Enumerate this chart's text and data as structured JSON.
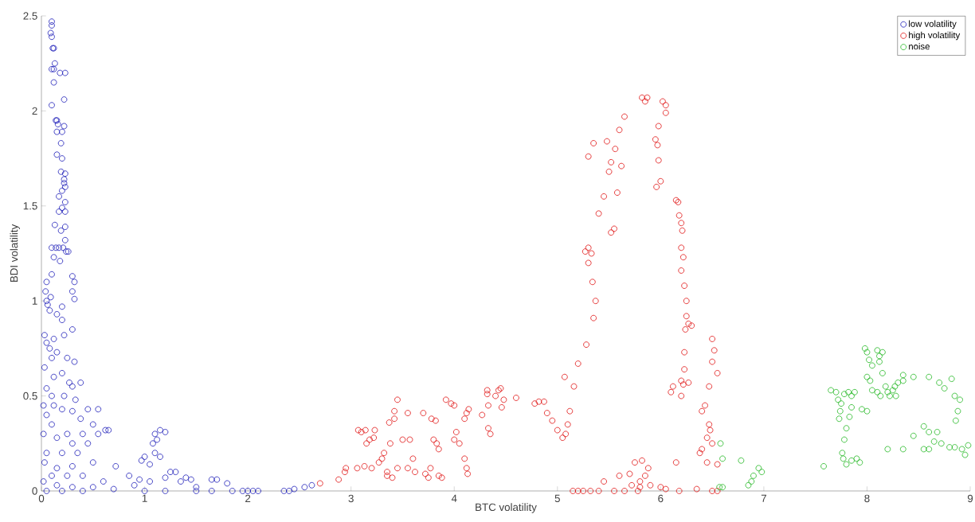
{
  "chart_data": {
    "type": "scatter",
    "xlabel": "BTC volatility",
    "ylabel": "BDI volatility",
    "xlim": [
      0,
      9
    ],
    "ylim": [
      0,
      2.5
    ],
    "xticks": [
      0,
      1,
      2,
      3,
      4,
      5,
      6,
      7,
      8,
      9
    ],
    "yticks": [
      0,
      0.5,
      1,
      1.5,
      2,
      2.5
    ],
    "legend": "top right",
    "marker": "circle",
    "series": [
      {
        "name": "low volatility",
        "color": "#1a1ab8",
        "x": [
          0.1,
          0.1,
          0.09,
          0.1,
          0.11,
          0.12,
          0.13,
          0.12,
          0.1,
          0.18,
          0.23,
          0.12,
          0.22,
          0.1,
          0.15,
          0.14,
          0.16,
          0.22,
          0.2,
          0.15,
          0.19,
          0.15,
          0.2,
          0.19,
          0.23,
          0.22,
          0.22,
          0.23,
          0.2,
          0.17,
          0.23,
          0.2,
          0.23,
          0.17,
          0.13,
          0.23,
          0.19,
          0.23,
          0.21,
          0.1,
          0.14,
          0.17,
          0.24,
          0.26,
          0.12,
          0.18,
          0.3,
          0.32,
          0.3,
          0.32,
          0.1,
          0.05,
          0.04,
          0.05,
          0.06,
          0.09,
          0.08,
          0.2,
          0.2,
          0.15,
          0.3,
          0.22,
          0.12,
          0.03,
          0.05,
          0.08,
          0.15,
          0.1,
          0.25,
          0.32,
          0.03,
          0.2,
          0.12,
          0.27,
          0.38,
          0.05,
          0.3,
          0.1,
          0.22,
          0.33,
          0.02,
          0.12,
          0.45,
          0.55,
          0.2,
          0.3,
          0.05,
          0.38,
          0.5,
          0.65,
          0.62,
          0.1,
          0.25,
          0.4,
          0.55,
          0.02,
          0.15,
          0.3,
          0.45,
          0.05,
          0.2,
          0.35,
          0.5,
          0.03,
          0.15,
          0.3,
          0.72,
          0.1,
          0.25,
          0.4,
          0.6,
          0.02,
          0.15,
          0.3,
          0.5,
          0.05,
          0.2,
          0.4,
          0.7,
          0.9,
          1.0,
          0.97,
          1.1,
          1.15,
          1.12,
          1.08,
          1.1,
          1.15,
          1.05,
          1.2,
          0.85,
          0.95,
          1.05,
          1.2,
          1.25,
          1.3,
          1.35,
          1.4,
          1.45,
          1.5,
          1.65,
          1.7,
          1.8,
          1.0,
          1.2,
          1.5,
          1.65,
          1.85,
          1.95,
          2.0,
          2.05,
          2.1,
          2.35,
          2.4,
          2.45,
          2.55,
          2.62
        ],
        "values": [
          2.47,
          2.45,
          2.41,
          2.39,
          2.33,
          2.33,
          2.25,
          2.22,
          2.22,
          2.2,
          2.2,
          2.15,
          2.06,
          2.03,
          1.95,
          1.95,
          1.93,
          1.92,
          1.89,
          1.89,
          1.83,
          1.77,
          1.75,
          1.68,
          1.67,
          1.64,
          1.62,
          1.6,
          1.58,
          1.55,
          1.52,
          1.49,
          1.47,
          1.47,
          1.4,
          1.39,
          1.37,
          1.32,
          1.28,
          1.28,
          1.28,
          1.28,
          1.26,
          1.26,
          1.23,
          1.21,
          1.13,
          1.1,
          1.05,
          1.01,
          1.14,
          1.1,
          1.05,
          1.0,
          0.98,
          1.02,
          0.95,
          0.97,
          0.9,
          0.93,
          0.85,
          0.82,
          0.8,
          0.82,
          0.78,
          0.75,
          0.73,
          0.7,
          0.7,
          0.68,
          0.65,
          0.62,
          0.6,
          0.57,
          0.57,
          0.54,
          0.55,
          0.5,
          0.5,
          0.48,
          0.45,
          0.45,
          0.43,
          0.43,
          0.43,
          0.42,
          0.4,
          0.38,
          0.35,
          0.32,
          0.32,
          0.35,
          0.3,
          0.3,
          0.3,
          0.3,
          0.28,
          0.25,
          0.25,
          0.2,
          0.2,
          0.2,
          0.15,
          0.15,
          0.12,
          0.13,
          0.13,
          0.08,
          0.08,
          0.08,
          0.05,
          0.05,
          0.03,
          0.02,
          0.02,
          0.0,
          0.0,
          0.0,
          0.01,
          0.03,
          0.18,
          0.16,
          0.3,
          0.32,
          0.27,
          0.25,
          0.2,
          0.18,
          0.14,
          0.31,
          0.08,
          0.06,
          0.05,
          0.07,
          0.1,
          0.1,
          0.05,
          0.07,
          0.06,
          0.02,
          0.06,
          0.06,
          0.04,
          0.0,
          0.0,
          0.0,
          0.0,
          0.0,
          0.0,
          0.0,
          0.0,
          0.0,
          0.0,
          0.0,
          0.01,
          0.02,
          0.03
        ]
      },
      {
        "name": "high volatility",
        "color": "#e01010",
        "x": [
          2.7,
          2.88,
          2.94,
          2.95,
          3.06,
          3.13,
          3.2,
          3.07,
          3.1,
          3.14,
          3.23,
          3.15,
          3.18,
          3.22,
          3.27,
          3.3,
          3.35,
          3.35,
          3.4,
          3.32,
          3.38,
          3.37,
          3.42,
          3.45,
          3.42,
          3.55,
          3.5,
          3.57,
          3.45,
          3.55,
          3.6,
          3.62,
          3.72,
          3.75,
          3.7,
          3.78,
          3.82,
          3.8,
          3.83,
          3.85,
          3.77,
          3.85,
          3.88,
          3.92,
          3.97,
          4.0,
          4.02,
          4.0,
          4.05,
          4.1,
          4.12,
          4.14,
          4.12,
          4.13,
          4.1,
          4.27,
          4.32,
          4.32,
          4.33,
          4.33,
          4.35,
          4.4,
          4.43,
          4.45,
          4.48,
          4.46,
          4.6,
          4.78,
          4.82,
          4.87,
          4.9,
          4.95,
          5.0,
          5.05,
          5.08,
          5.1,
          5.12,
          5.16,
          5.07,
          5.2,
          5.28,
          5.35,
          5.37,
          5.34,
          5.3,
          5.27,
          5.3,
          5.33,
          5.4,
          5.45,
          5.5,
          5.52,
          5.56,
          5.6,
          5.65,
          5.62,
          5.58,
          5.55,
          5.52,
          5.35,
          5.48,
          5.3,
          5.82,
          5.87,
          5.85,
          6.02,
          6.05,
          6.05,
          5.98,
          5.95,
          5.97,
          5.98,
          6.0,
          5.96,
          6.15,
          6.17,
          6.18,
          6.2,
          6.21,
          6.2,
          6.22,
          6.2,
          6.23,
          6.25,
          6.25,
          6.27,
          6.3,
          6.24,
          6.23,
          6.23,
          6.2,
          6.22,
          6.12,
          6.1,
          6.2,
          6.27,
          6.5,
          6.52,
          6.5,
          6.55,
          6.47,
          6.43,
          6.4,
          6.47,
          6.48,
          6.45,
          6.5,
          6.4,
          6.38,
          6.45,
          6.55,
          5.45,
          5.6,
          5.7,
          5.75,
          5.82,
          5.88,
          5.85,
          5.8,
          5.72,
          5.9,
          6.0,
          6.15,
          6.05,
          6.18,
          6.35,
          6.5,
          6.55,
          5.15,
          5.2,
          5.25,
          5.32,
          5.4,
          5.55,
          5.65,
          5.78,
          5.8
        ],
        "values": [
          0.04,
          0.06,
          0.1,
          0.12,
          0.12,
          0.13,
          0.12,
          0.32,
          0.31,
          0.32,
          0.32,
          0.25,
          0.27,
          0.28,
          0.15,
          0.17,
          0.1,
          0.08,
          0.07,
          0.2,
          0.25,
          0.36,
          0.42,
          0.48,
          0.38,
          0.41,
          0.27,
          0.27,
          0.12,
          0.12,
          0.17,
          0.1,
          0.09,
          0.07,
          0.41,
          0.38,
          0.37,
          0.27,
          0.25,
          0.22,
          0.12,
          0.08,
          0.07,
          0.48,
          0.46,
          0.45,
          0.31,
          0.27,
          0.25,
          0.38,
          0.41,
          0.43,
          0.12,
          0.09,
          0.17,
          0.4,
          0.51,
          0.53,
          0.45,
          0.33,
          0.3,
          0.5,
          0.53,
          0.54,
          0.48,
          0.44,
          0.49,
          0.46,
          0.47,
          0.47,
          0.41,
          0.37,
          0.32,
          0.28,
          0.3,
          0.35,
          0.42,
          0.55,
          0.6,
          0.67,
          0.77,
          0.91,
          1.0,
          1.1,
          1.2,
          1.26,
          1.28,
          1.25,
          1.46,
          1.55,
          1.68,
          1.73,
          1.8,
          1.9,
          1.97,
          1.71,
          1.57,
          1.38,
          1.36,
          1.83,
          1.84,
          1.76,
          2.07,
          2.07,
          2.05,
          2.05,
          2.03,
          1.99,
          1.92,
          1.85,
          1.82,
          1.74,
          1.63,
          1.6,
          1.53,
          1.52,
          1.45,
          1.41,
          1.37,
          1.28,
          1.23,
          1.16,
          1.08,
          1.0,
          0.92,
          0.88,
          0.87,
          0.85,
          0.73,
          0.64,
          0.58,
          0.56,
          0.55,
          0.52,
          0.5,
          0.57,
          0.8,
          0.74,
          0.68,
          0.62,
          0.55,
          0.45,
          0.42,
          0.35,
          0.32,
          0.28,
          0.25,
          0.22,
          0.2,
          0.15,
          0.14,
          0.05,
          0.08,
          0.09,
          0.15,
          0.16,
          0.12,
          0.08,
          0.05,
          0.03,
          0.03,
          0.02,
          0.15,
          0.01,
          0.0,
          0.01,
          0.0,
          0.0,
          0.0,
          0.0,
          0.0,
          0.0,
          0.0,
          0.0,
          0.0,
          0.0,
          0.02
        ]
      },
      {
        "name": "noise",
        "color": "#22b822",
        "x": [
          6.58,
          6.6,
          6.57,
          6.78,
          6.95,
          6.9,
          6.88,
          6.85,
          6.98,
          7.58,
          7.65,
          7.7,
          7.75,
          7.74,
          7.73,
          7.78,
          7.82,
          7.85,
          7.88,
          7.85,
          7.83,
          7.8,
          7.78,
          7.76,
          7.77,
          7.8,
          7.85,
          7.9,
          7.93,
          7.72,
          7.95,
          8.0,
          7.98,
          8.0,
          8.02,
          8.05,
          8.0,
          8.03,
          8.1,
          8.12,
          8.15,
          8.12,
          8.15,
          8.05,
          8.1,
          8.13,
          8.18,
          8.2,
          8.22,
          8.25,
          8.27,
          8.3,
          8.28,
          8.35,
          8.35,
          8.45,
          8.6,
          8.7,
          8.75,
          8.82,
          8.85,
          8.9,
          8.88,
          8.86,
          8.55,
          8.6,
          8.68,
          8.45,
          8.65,
          8.72,
          8.8,
          8.85,
          8.92,
          8.95,
          8.2,
          8.35,
          8.55,
          8.6,
          8.98,
          6.6
        ],
        "values": [
          0.25,
          0.17,
          0.02,
          0.16,
          0.12,
          0.08,
          0.05,
          0.03,
          0.1,
          0.13,
          0.53,
          0.52,
          0.46,
          0.42,
          0.38,
          0.51,
          0.52,
          0.5,
          0.52,
          0.44,
          0.39,
          0.33,
          0.27,
          0.2,
          0.17,
          0.14,
          0.16,
          0.17,
          0.15,
          0.48,
          0.43,
          0.42,
          0.75,
          0.73,
          0.69,
          0.66,
          0.6,
          0.58,
          0.74,
          0.71,
          0.73,
          0.68,
          0.62,
          0.53,
          0.52,
          0.5,
          0.55,
          0.52,
          0.5,
          0.53,
          0.55,
          0.57,
          0.5,
          0.58,
          0.61,
          0.6,
          0.6,
          0.57,
          0.54,
          0.59,
          0.5,
          0.48,
          0.42,
          0.37,
          0.34,
          0.31,
          0.31,
          0.29,
          0.26,
          0.25,
          0.23,
          0.23,
          0.22,
          0.19,
          0.22,
          0.22,
          0.22,
          0.22,
          0.24,
          0.02
        ]
      }
    ]
  }
}
